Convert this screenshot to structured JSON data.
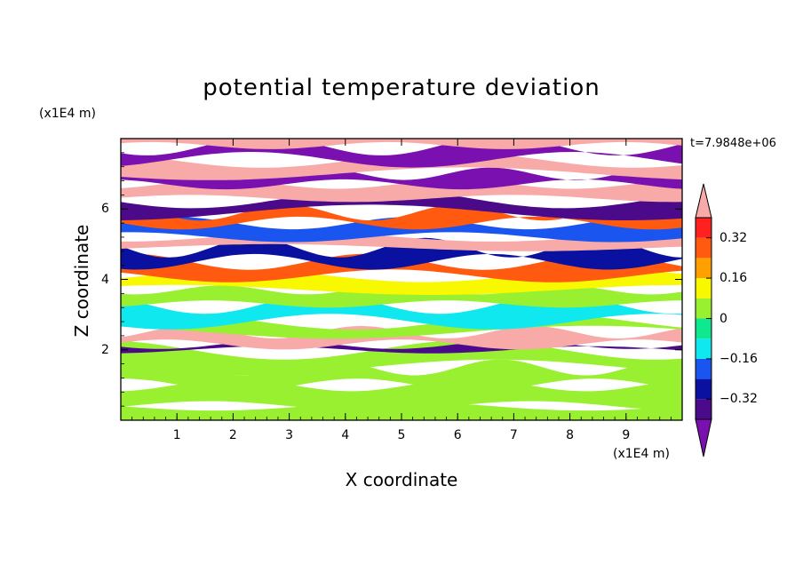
{
  "chart_data": {
    "type": "heatmap",
    "title": "potential temperature deviation",
    "xlabel": "X coordinate",
    "ylabel": "Z coordinate",
    "x_unit": "(x1E4 m)",
    "y_unit": "(x1E4 m)",
    "time_label": "t=7.9848e+06",
    "xlim": [
      0,
      10
    ],
    "ylim": [
      0,
      8
    ],
    "x_ticks": [
      1,
      2,
      3,
      4,
      5,
      6,
      7,
      8,
      9
    ],
    "y_ticks": [
      2,
      4,
      6
    ],
    "colorbar": {
      "levels": [
        -0.4,
        -0.32,
        -0.24,
        -0.16,
        -0.08,
        0,
        0.08,
        0.16,
        0.24,
        0.32,
        0.4
      ],
      "tick_labels": [
        "0.32",
        "0.16",
        "0",
        "−0.16",
        "−0.32"
      ],
      "tick_values": [
        0.32,
        0.16,
        0,
        -0.16,
        -0.32
      ],
      "colors_low_to_high": [
        "#4a0a8a",
        "#0a10a0",
        "#1a55f0",
        "#10e8f0",
        "#10e890",
        "#98f030",
        "#f8f800",
        "#ffa000",
        "#ff5a10",
        "#ff2020"
      ],
      "under_color": "#7a10b0",
      "over_color": "#f7aaa8"
    },
    "bands": [
      {
        "z": [
          0.0,
          0.4
        ],
        "value": 0.02
      },
      {
        "z": [
          0.4,
          1.0
        ],
        "value": 0.06
      },
      {
        "z": [
          1.0,
          1.5
        ],
        "value": 0.02
      },
      {
        "z": [
          1.5,
          2.0
        ],
        "value": 0.06
      },
      {
        "z": [
          2.0,
          2.15
        ],
        "value": -0.35
      },
      {
        "z": [
          2.15,
          2.5
        ],
        "value": 0.42
      },
      {
        "z": [
          2.5,
          2.8
        ],
        "value": 0.02
      },
      {
        "z": [
          2.8,
          3.3
        ],
        "value": -0.1
      },
      {
        "z": [
          3.3,
          3.7
        ],
        "value": 0.02
      },
      {
        "z": [
          3.7,
          4.1
        ],
        "value": 0.12
      },
      {
        "z": [
          4.1,
          4.5
        ],
        "value": 0.3
      },
      {
        "z": [
          4.5,
          4.9
        ],
        "value": -0.3
      },
      {
        "z": [
          4.9,
          5.2
        ],
        "value": 0.42
      },
      {
        "z": [
          5.2,
          5.6
        ],
        "value": -0.2
      },
      {
        "z": [
          5.6,
          5.9
        ],
        "value": 0.25
      },
      {
        "z": [
          5.9,
          6.3
        ],
        "value": -0.36
      },
      {
        "z": [
          6.3,
          6.7
        ],
        "value": 0.42
      },
      {
        "z": [
          6.7,
          7.0
        ],
        "value": -0.45
      },
      {
        "z": [
          7.0,
          7.4
        ],
        "value": 0.42
      },
      {
        "z": [
          7.4,
          7.8
        ],
        "value": -0.45
      },
      {
        "z": [
          7.8,
          8.0
        ],
        "value": 0.42
      }
    ]
  }
}
